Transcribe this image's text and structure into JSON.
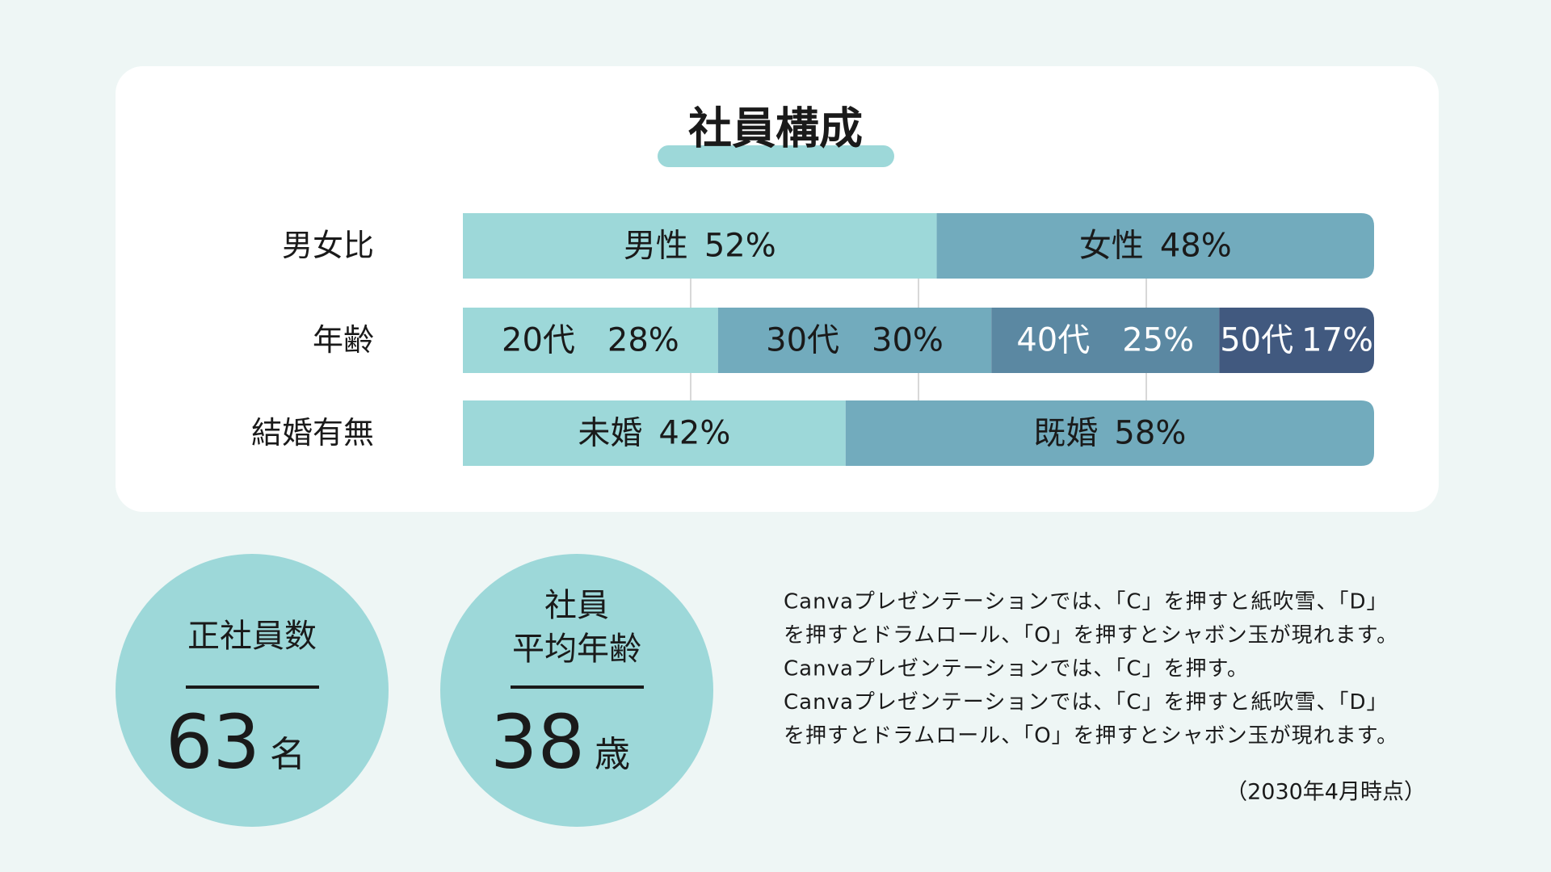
{
  "chart_data": {
    "type": "stacked-bar",
    "title": "社員構成",
    "xlim": [
      0,
      100
    ],
    "xticks": [
      25,
      50,
      75
    ],
    "grid": true,
    "bars": [
      {
        "name": "男女比",
        "segments": [
          {
            "name": "男性",
            "value": 52,
            "value_label": "52%",
            "color": "#9dd8d9",
            "text_color": "#1a1a1a"
          },
          {
            "name": "女性",
            "value": 48,
            "value_label": "48%",
            "color": "#72abbd",
            "text_color": "#1a1a1a"
          }
        ]
      },
      {
        "name": "年齢",
        "segments": [
          {
            "name": "20代",
            "value": 28,
            "value_label": "28%",
            "color": "#9dd8d9",
            "text_color": "#1a1a1a"
          },
          {
            "name": "30代",
            "value": 30,
            "value_label": "30%",
            "color": "#72abbd",
            "text_color": "#1a1a1a"
          },
          {
            "name": "40代",
            "value": 25,
            "value_label": "25%",
            "color": "#5b88a2",
            "text_color": "#ffffff"
          },
          {
            "name": "50代",
            "value": 17,
            "value_label": "17%",
            "color": "#41597f",
            "text_color": "#ffffff"
          }
        ]
      },
      {
        "name": "結婚有無",
        "segments": [
          {
            "name": "未婚",
            "value": 42,
            "value_label": "42%",
            "color": "#9dd8d9",
            "text_color": "#1a1a1a"
          },
          {
            "name": "既婚",
            "value": 58,
            "value_label": "58%",
            "color": "#72abbd",
            "text_color": "#1a1a1a"
          }
        ]
      }
    ]
  },
  "stats": [
    {
      "label": [
        "正社員数"
      ],
      "value": 63,
      "unit": "名"
    },
    {
      "label": [
        "社員",
        "平均年齢"
      ],
      "value": 38,
      "unit": "歳"
    }
  ],
  "notes": [
    "Canvaプレゼンテーションでは、「C」を押すと紙吹雪、「D」",
    "を押すとドラムロール、「O」を押すとシャボン玉が現れます。",
    "Canvaプレゼンテーションでは、「C」を押す。",
    "Canvaプレゼンテーションでは、「C」を押すと紙吹雪、「D」",
    "を押すとドラムロール、「O」を押すとシャボン玉が現れます。"
  ],
  "date_note": "（2030年4月時点）"
}
